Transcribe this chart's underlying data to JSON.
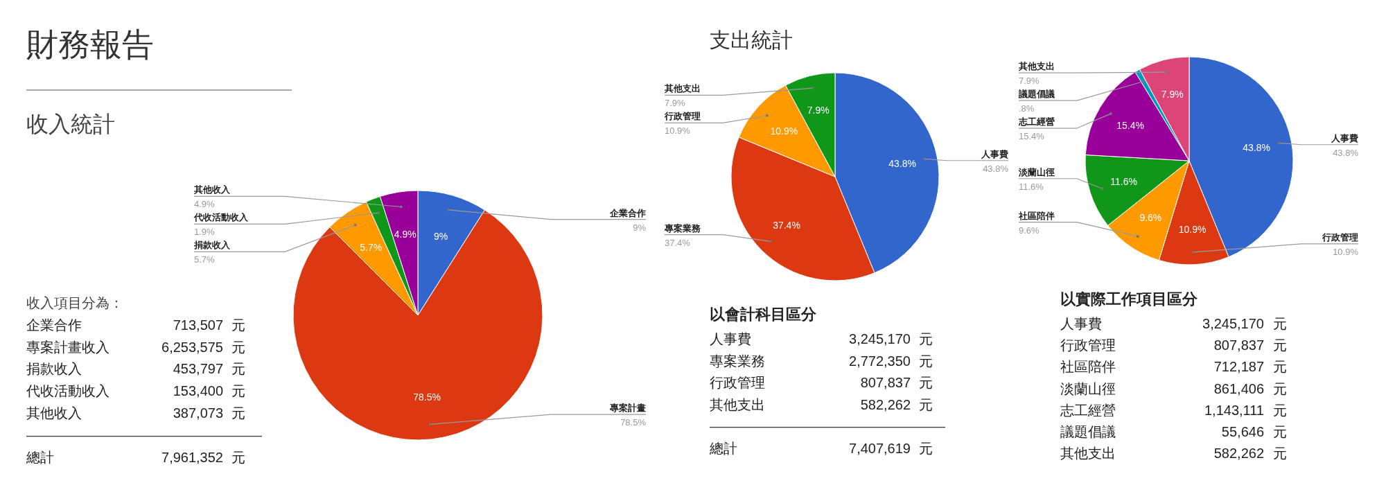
{
  "chart_data": [
    {
      "type": "other",
      "title": "財務報告",
      "subtitle": "收入統計",
      "annotations": [
        "收入項目分為：",
        "企業合作 713,507 元",
        "專案計畫收入 6,253,575 元",
        "捐款收入 453,797 元",
        "代收活動收入 153,400 元",
        "其他收入 387,073 元",
        "—————————————————",
        "總計 7,961,352 元"
      ]
    },
    {
      "type": "pie",
      "categories": [
        "企業合作",
        "專案計畫",
        "捐款收入",
        "代收活動收入",
        "其他收入"
      ],
      "values": [
        9,
        78.5,
        5.7,
        1.9,
        4.9
      ],
      "colors": [
        "#3366cc",
        "#dc3912",
        "#ff9900",
        "#109618",
        "#990099"
      ],
      "value_labels": [
        "9%",
        "78.5%",
        "5.7%",
        "1.9%",
        "4.9%"
      ]
    },
    {
      "type": "pie",
      "title": "支出統計",
      "categories": [
        "人事費",
        "專案業務",
        "行政管理",
        "其他支出"
      ],
      "values": [
        43.8,
        37.4,
        10.9,
        7.9
      ],
      "colors": [
        "#3366cc",
        "#dc3912",
        "#ff9900",
        "#109618"
      ],
      "value_labels": [
        "43.8%",
        "37.4%",
        "10.9%",
        "7.9%"
      ]
    },
    {
      "type": "other",
      "title": "以會計科目區分",
      "annotations": [
        "人事費 3,245,170 元",
        "專案業務 2,772,350 元",
        "行政管理 807,837 元",
        "其他支出 582,262 元",
        "—————————————————",
        "總計 7,407,619 元"
      ]
    },
    {
      "type": "pie",
      "categories": [
        "人事費",
        "行政管理",
        "社區陪伴",
        "淡蘭山徑",
        "志工經營",
        "議題倡議",
        "其他支出"
      ],
      "values": [
        43.8,
        10.9,
        9.6,
        11.6,
        15.4,
        0.8,
        7.9
      ],
      "colors": [
        "#3366cc",
        "#dc3912",
        "#ff9900",
        "#109618",
        "#990099",
        "#0099c6",
        "#dd4477"
      ],
      "value_labels": [
        "43.8%",
        "10.9%",
        "9.6%",
        "11.6%",
        "15.4%",
        ".8%",
        "7.9%"
      ]
    },
    {
      "type": "other",
      "title": "以實際工作項目區分",
      "annotations": [
        "人事費 3,245,170 元",
        "行政管理 807,837 元",
        "社區陪伴 712,187 元",
        "淡蘭山徑 861,406 元",
        "志工經營 1,143,111 元",
        "議題倡議 55,646 元",
        "其他支出 582,262 元"
      ]
    }
  ]
}
